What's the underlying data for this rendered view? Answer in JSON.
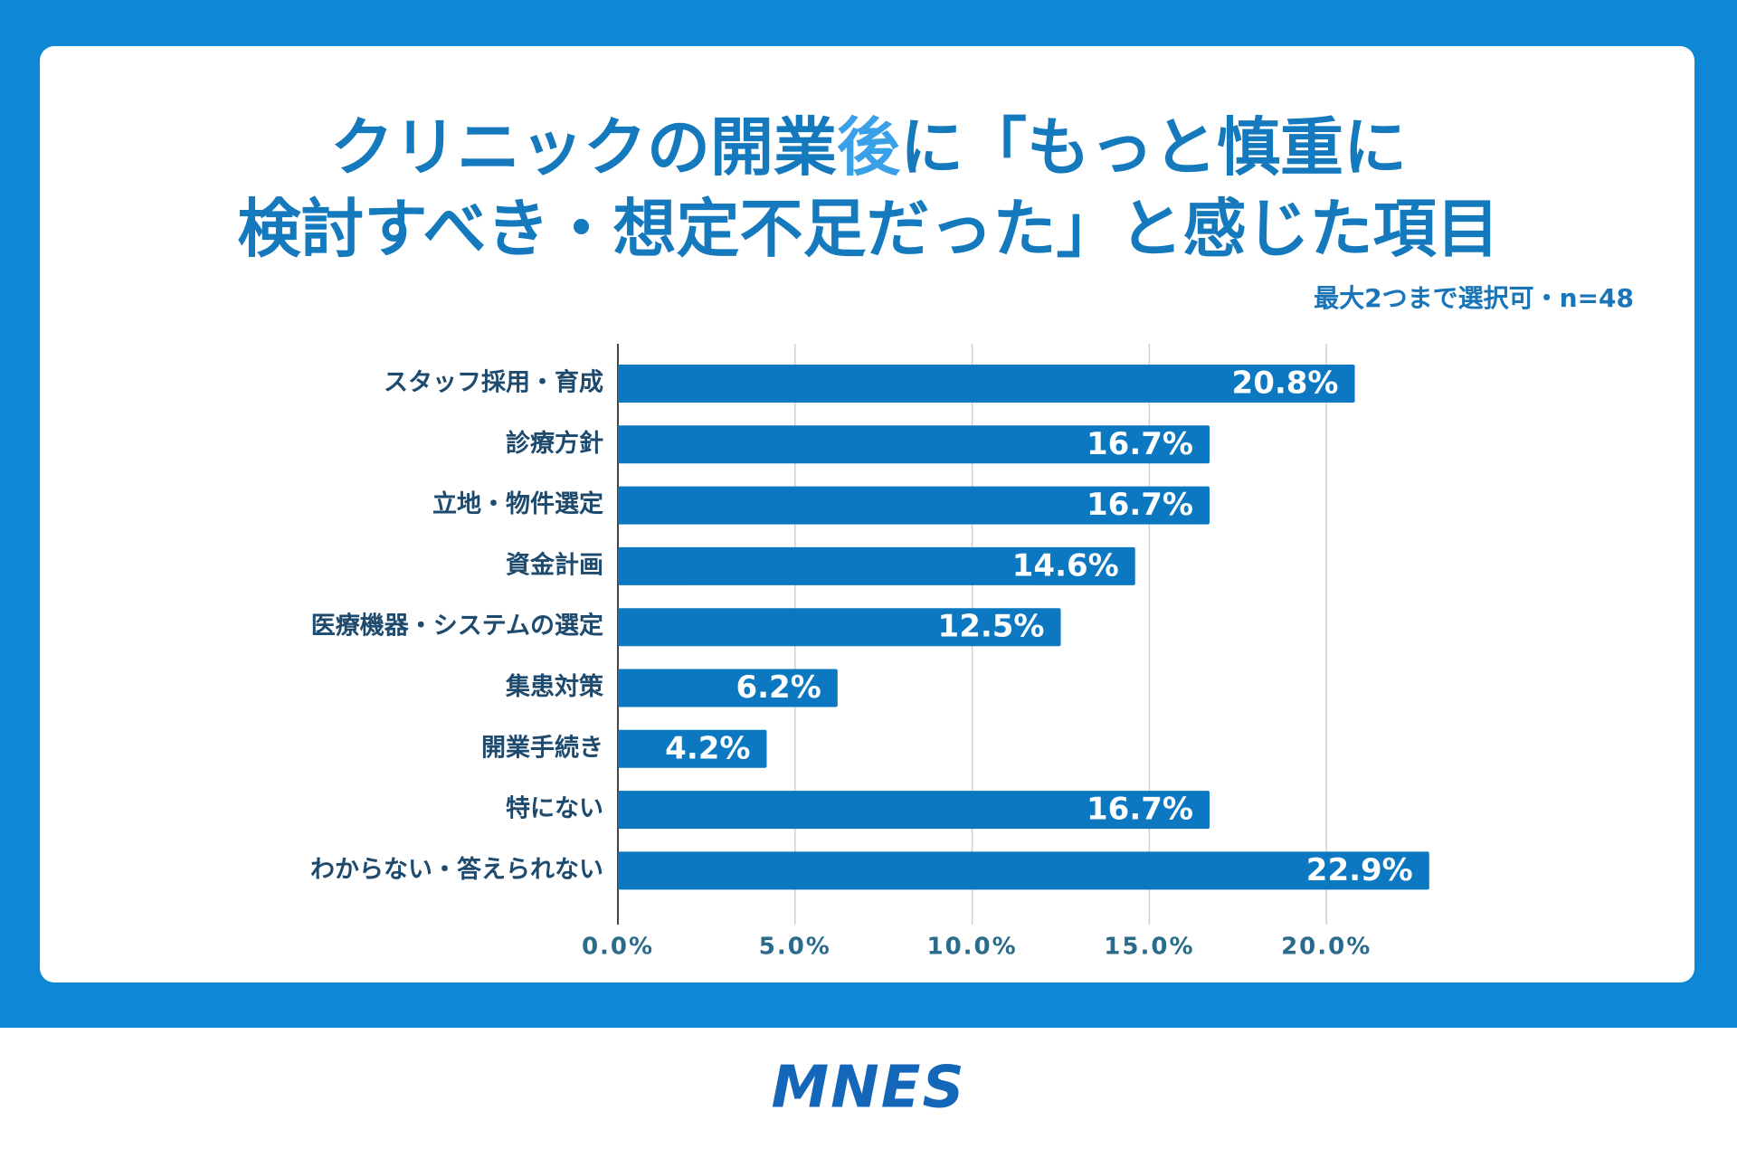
{
  "chart_data": {
    "type": "bar",
    "orientation": "horizontal",
    "title_parts": [
      "クリニックの開業",
      "後",
      "に「もっと慎重に",
      "検討すべき・想定不足だった」と感じた項目"
    ],
    "title_color": "#1479bd",
    "title_highlight_color": "#3aa0e8",
    "subtitle": "最大2つまで選択可・n=48",
    "categories": [
      "スタッフ採用・育成",
      "診療方針",
      "立地・物件選定",
      "資金計画",
      "医療機器・システムの選定",
      "集患対策",
      "開業手続き",
      "特にない",
      "わからない・答えられない"
    ],
    "values": [
      20.8,
      16.7,
      16.7,
      14.6,
      12.5,
      6.2,
      4.2,
      16.7,
      22.9
    ],
    "value_labels": [
      "20.8%",
      "16.7%",
      "16.7%",
      "14.6%",
      "12.5%",
      "6.2%",
      "4.2%",
      "16.7%",
      "22.9%"
    ],
    "color": "#0b78c1",
    "xlim": [
      0,
      25
    ],
    "xticks": [
      {
        "value": 0,
        "label": "0.0%"
      },
      {
        "value": 5,
        "label": "5.0%"
      },
      {
        "value": 10,
        "label": "10.0%"
      },
      {
        "value": 15,
        "label": "15.0%"
      },
      {
        "value": 20,
        "label": "20.0%"
      }
    ],
    "grid": true
  },
  "footer": {
    "logo": "MNES"
  }
}
